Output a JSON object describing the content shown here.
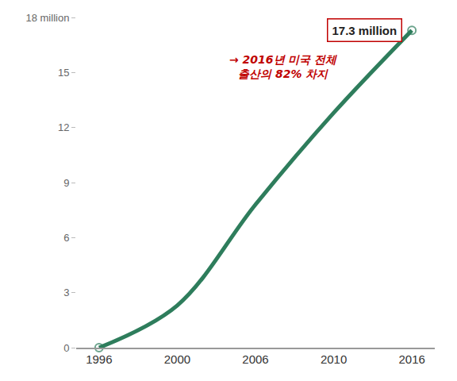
{
  "chart_data": {
    "type": "line",
    "categories": [
      "1996",
      "2000",
      "2006",
      "2010",
      "2016"
    ],
    "values": [
      0,
      2.3,
      7.8,
      12.8,
      17.3
    ],
    "value_labels": [
      null,
      null,
      null,
      null,
      "17.3 million"
    ],
    "color": "#2e7d5c",
    "marker": "open circle",
    "line_style": "solid",
    "ylim": [
      0,
      18
    ],
    "yticks": [
      0,
      3,
      6,
      9,
      12,
      15,
      {
        "value": 18,
        "label": "18 million"
      }
    ],
    "grid": false,
    "annotations": [
      "→ 2016년 미국 전체\n출산의 82% 차지"
    ]
  }
}
